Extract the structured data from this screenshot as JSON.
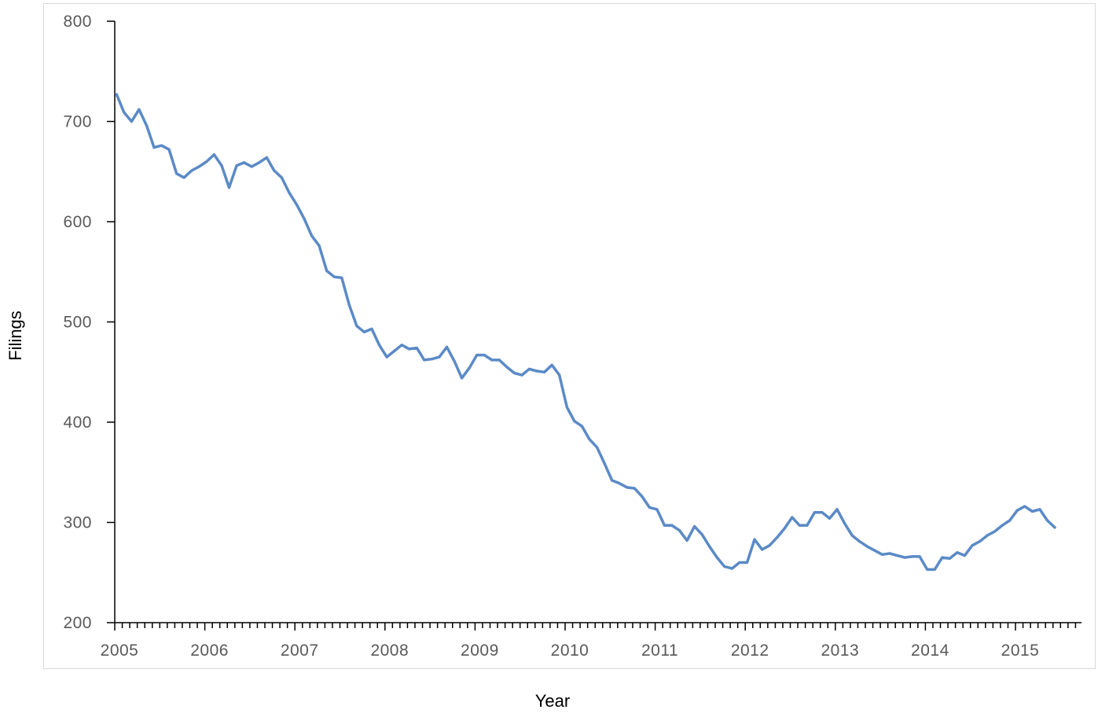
{
  "chart_data": {
    "type": "line",
    "title": "",
    "xlabel": "Year",
    "ylabel": "Filings",
    "xlim": [
      2005,
      2016
    ],
    "ylim": [
      200,
      800
    ],
    "y_ticks": [
      200,
      300,
      400,
      500,
      600,
      700,
      800
    ],
    "x_ticks": [
      2005,
      2006,
      2007,
      2008,
      2009,
      2010,
      2011,
      2012,
      2013,
      2014,
      2015
    ],
    "x_tick_labels": [
      "2005",
      "2006",
      "2007",
      "2008",
      "2009",
      "2010",
      "2011",
      "2012",
      "2013",
      "2014",
      "2015"
    ],
    "minor_ticks_per_year": 12,
    "grid": false,
    "series": [
      {
        "color": "#5b8ac6",
        "start_year": 2005,
        "step_months": 1,
        "values": [
          727,
          709,
          700,
          712,
          696,
          674,
          676,
          672,
          648,
          644,
          651,
          655,
          660,
          667,
          656,
          634,
          656,
          659,
          655,
          659,
          664,
          651,
          644,
          629,
          617,
          603,
          586,
          576,
          551,
          545,
          544,
          517,
          496,
          490,
          493,
          477,
          465,
          471,
          477,
          473,
          474,
          462,
          463,
          465,
          475,
          461,
          444,
          454,
          467,
          467,
          462,
          462,
          455,
          449,
          447,
          453,
          451,
          450,
          457,
          447,
          415,
          401,
          396,
          383,
          375,
          359,
          342,
          339,
          335,
          334,
          326,
          315,
          313,
          297,
          297,
          292,
          282,
          296,
          288,
          276,
          265,
          256,
          254,
          260,
          260,
          283,
          273,
          277,
          285,
          294,
          305,
          297,
          297,
          310,
          310,
          304,
          313,
          299,
          287,
          281,
          276,
          272,
          268,
          269,
          267,
          265,
          266,
          266,
          253,
          253,
          265,
          264,
          270,
          267,
          277,
          281,
          287,
          291,
          297,
          302,
          312,
          316,
          311,
          313,
          302,
          295
        ]
      }
    ]
  }
}
